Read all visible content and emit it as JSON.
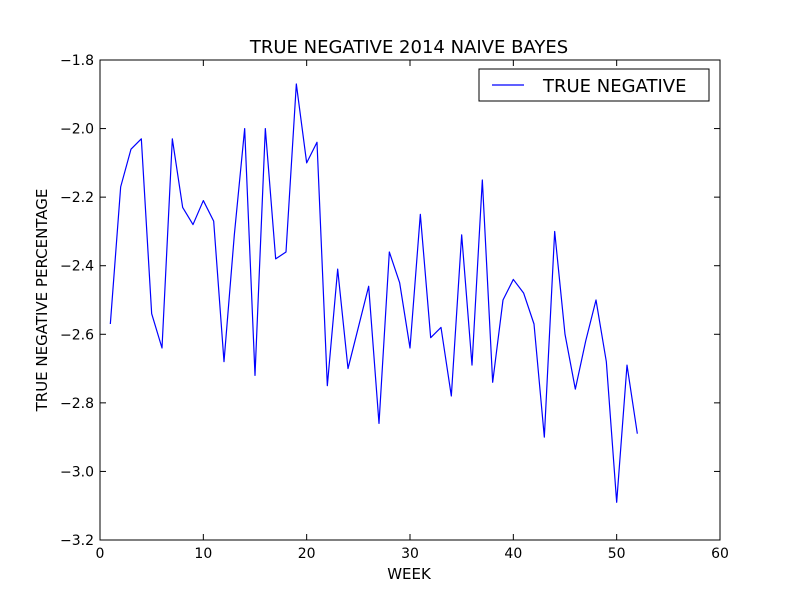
{
  "chart_data": {
    "type": "line",
    "title": "TRUE NEGATIVE 2014 NAIVE BAYES",
    "xlabel": "WEEK",
    "ylabel": "TRUE NEGATIVE PERCENTAGE",
    "xlim": [
      0,
      60
    ],
    "ylim": [
      -3.2,
      -1.8
    ],
    "xticks": [
      0,
      10,
      20,
      30,
      40,
      50,
      60
    ],
    "yticks": [
      -3.2,
      -3.0,
      -2.8,
      -2.6,
      -2.4,
      -2.2,
      -2.0,
      -1.8
    ],
    "xtick_labels": [
      "0",
      "10",
      "20",
      "30",
      "40",
      "50",
      "60"
    ],
    "ytick_labels": [
      "−3.2",
      "−3.0",
      "−2.8",
      "−2.6",
      "−2.4",
      "−2.2",
      "−2.0",
      "−1.8"
    ],
    "grid": false,
    "legend_position": "top-right",
    "series": [
      {
        "name": "TRUE NEGATIVE",
        "color": "#0000ff",
        "x": [
          1,
          2,
          3,
          4,
          5,
          6,
          7,
          8,
          9,
          10,
          11,
          12,
          13,
          14,
          15,
          16,
          17,
          18,
          19,
          20,
          21,
          22,
          23,
          24,
          25,
          26,
          27,
          28,
          29,
          30,
          31,
          32,
          33,
          34,
          35,
          36,
          37,
          38,
          39,
          40,
          41,
          42,
          43,
          44,
          45,
          46,
          47,
          48,
          49,
          50,
          51,
          52
        ],
        "y": [
          -2.57,
          -2.17,
          -2.06,
          -2.03,
          -2.54,
          -2.64,
          -2.03,
          -2.23,
          -2.28,
          -2.21,
          -2.27,
          -2.68,
          -2.31,
          -2.0,
          -2.72,
          -2.0,
          -2.38,
          -2.36,
          -1.87,
          -2.1,
          -2.04,
          -2.75,
          -2.41,
          -2.7,
          -2.58,
          -2.46,
          -2.86,
          -2.36,
          -2.45,
          -2.64,
          -2.25,
          -2.61,
          -2.58,
          -2.78,
          -2.31,
          -2.69,
          -2.15,
          -2.74,
          -2.5,
          -2.44,
          -2.48,
          -2.57,
          -2.9,
          -2.3,
          -2.6,
          -2.76,
          -2.62,
          -2.5,
          -2.68,
          -3.09,
          -2.69,
          -2.89
        ]
      }
    ]
  }
}
